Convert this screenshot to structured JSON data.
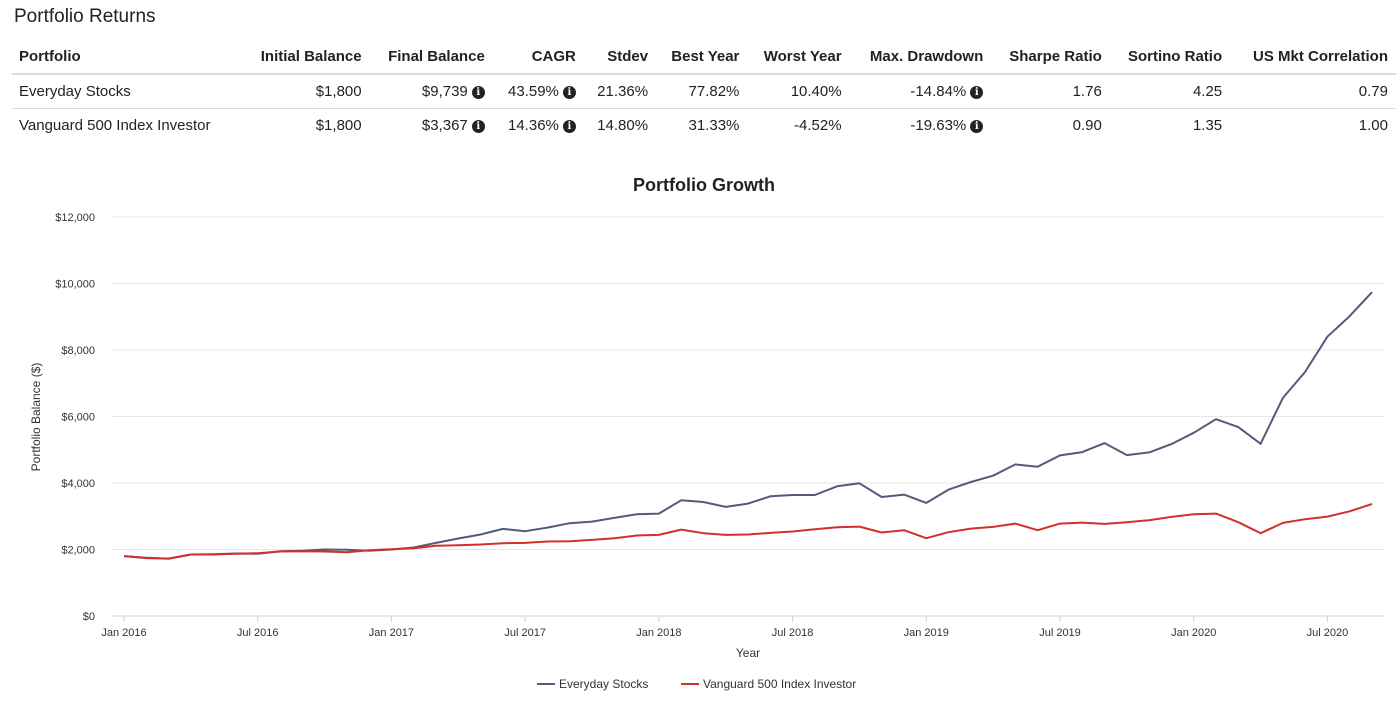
{
  "page_title": "Portfolio Returns",
  "table": {
    "columns": [
      "Portfolio",
      "Initial Balance",
      "Final Balance",
      "CAGR",
      "Stdev",
      "Best Year",
      "Worst Year",
      "Max. Drawdown",
      "Sharpe Ratio",
      "Sortino Ratio",
      "US Mkt Correlation"
    ],
    "rows": [
      [
        "Everyday Stocks",
        "$1,800",
        "$9,739",
        "43.59%",
        "21.36%",
        "77.82%",
        "10.40%",
        "-14.84%",
        "1.76",
        "4.25",
        "0.79"
      ],
      [
        "Vanguard 500 Index Investor",
        "$1,800",
        "$3,367",
        "14.36%",
        "14.80%",
        "31.33%",
        "-4.52%",
        "-19.63%",
        "0.90",
        "1.35",
        "1.00"
      ]
    ],
    "info_icon_columns": [
      2,
      3,
      7
    ],
    "info_icon": "info-circle-icon"
  },
  "chart_data": {
    "type": "line",
    "title": "Portfolio Growth",
    "xlabel": "Year",
    "ylabel": "Portfolio Balance ($)",
    "ylim": [
      0,
      12000
    ],
    "y_ticks": [
      "$0",
      "$2,000",
      "$4,000",
      "$6,000",
      "$8,000",
      "$10,000",
      "$12,000"
    ],
    "x_ticks": [
      "Jan 2016",
      "Jul 2016",
      "Jan 2017",
      "Jul 2017",
      "Jan 2018",
      "Jul 2018",
      "Jan 2019",
      "Jul 2019",
      "Jan 2020",
      "Jul 2020"
    ],
    "x_start": "Jan 2016",
    "x_end": "Aug 2020",
    "grid": true,
    "legend_position": "bottom-center",
    "series": [
      {
        "name": "Everyday Stocks",
        "color": "#545a79",
        "values": [
          1800,
          1750,
          1720,
          1850,
          1860,
          1880,
          1870,
          1950,
          1960,
          2000,
          1990,
          1960,
          2000,
          2060,
          2200,
          2330,
          2450,
          2620,
          2550,
          2660,
          2790,
          2840,
          2950,
          3060,
          3080,
          3480,
          3430,
          3280,
          3380,
          3600,
          3640,
          3640,
          3900,
          3990,
          3580,
          3650,
          3400,
          3800,
          4030,
          4220,
          4560,
          4490,
          4830,
          4930,
          5200,
          4840,
          4920,
          5170,
          5510,
          5920,
          5680,
          5180,
          6560,
          7340,
          8400,
          9020,
          9739
        ]
      },
      {
        "name": "Vanguard 500 Index Investor",
        "color": "#d1302b",
        "values": [
          1800,
          1740,
          1730,
          1850,
          1850,
          1870,
          1890,
          1940,
          1950,
          1940,
          1920,
          1980,
          2010,
          2040,
          2110,
          2130,
          2150,
          2190,
          2200,
          2240,
          2250,
          2290,
          2340,
          2420,
          2440,
          2600,
          2490,
          2440,
          2450,
          2500,
          2540,
          2610,
          2670,
          2690,
          2510,
          2580,
          2340,
          2520,
          2630,
          2680,
          2780,
          2580,
          2780,
          2810,
          2770,
          2820,
          2880,
          2980,
          3060,
          3080,
          2820,
          2490,
          2800,
          2910,
          2990,
          3150,
          3367
        ]
      }
    ]
  }
}
